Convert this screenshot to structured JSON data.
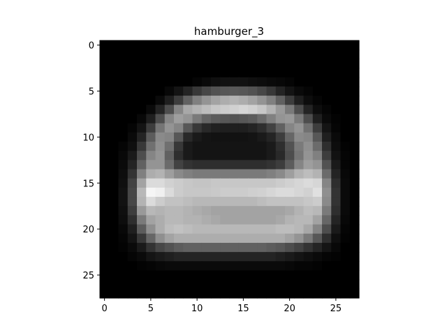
{
  "chart_data": {
    "type": "heatmap",
    "title": "hamburger_3",
    "colormap": "gray",
    "rows": 28,
    "cols": 28,
    "xlim": [
      -0.5,
      27.5
    ],
    "ylim": [
      27.5,
      -0.5
    ],
    "xticks": [
      0,
      5,
      10,
      15,
      20,
      25
    ],
    "yticks": [
      0,
      5,
      10,
      15,
      20,
      25
    ],
    "grid": false,
    "values": [
      [
        0,
        0,
        0,
        0,
        0,
        0,
        0,
        0,
        0,
        0,
        0,
        0,
        0,
        0,
        0,
        0,
        0,
        0,
        0,
        0,
        0,
        0,
        0,
        0,
        0,
        0,
        0,
        0
      ],
      [
        0,
        0,
        0,
        0,
        0,
        0,
        0,
        0,
        0,
        0,
        0,
        0,
        0,
        0,
        0,
        0,
        0,
        0,
        0,
        0,
        0,
        0,
        0,
        0,
        0,
        0,
        0,
        0
      ],
      [
        0,
        0,
        0,
        0,
        0,
        0,
        0,
        0,
        0,
        0,
        0,
        0,
        0,
        0,
        0,
        0,
        0,
        0,
        0,
        0,
        0,
        0,
        0,
        0,
        0,
        0,
        0,
        0
      ],
      [
        0,
        0,
        0,
        0,
        0,
        0,
        0,
        0,
        0,
        0,
        0,
        0,
        0,
        0,
        0,
        0,
        0,
        0,
        0,
        0,
        0,
        0,
        0,
        0,
        0,
        0,
        0,
        0
      ],
      [
        0,
        0,
        0,
        0,
        0,
        0,
        0,
        0,
        0,
        0,
        0.02,
        0.04,
        0.06,
        0.07,
        0.07,
        0.07,
        0.06,
        0.05,
        0.04,
        0.03,
        0.02,
        0,
        0,
        0,
        0,
        0,
        0,
        0
      ],
      [
        0,
        0,
        0,
        0,
        0,
        0,
        0,
        0.03,
        0.08,
        0.14,
        0.22,
        0.28,
        0.32,
        0.34,
        0.35,
        0.34,
        0.32,
        0.28,
        0.22,
        0.14,
        0.08,
        0.04,
        0.02,
        0,
        0,
        0,
        0,
        0
      ],
      [
        0,
        0,
        0,
        0,
        0,
        0,
        0.04,
        0.12,
        0.24,
        0.38,
        0.5,
        0.58,
        0.64,
        0.68,
        0.7,
        0.68,
        0.64,
        0.58,
        0.5,
        0.38,
        0.24,
        0.12,
        0.05,
        0.02,
        0,
        0,
        0,
        0
      ],
      [
        0,
        0,
        0,
        0,
        0,
        0.04,
        0.14,
        0.3,
        0.52,
        0.66,
        0.7,
        0.74,
        0.78,
        0.8,
        0.82,
        0.84,
        0.82,
        0.78,
        0.7,
        0.6,
        0.48,
        0.3,
        0.14,
        0.05,
        0.02,
        0,
        0,
        0
      ],
      [
        0,
        0,
        0,
        0,
        0.03,
        0.12,
        0.3,
        0.52,
        0.62,
        0.58,
        0.48,
        0.4,
        0.36,
        0.34,
        0.33,
        0.34,
        0.36,
        0.42,
        0.5,
        0.58,
        0.6,
        0.48,
        0.3,
        0.12,
        0.04,
        0.01,
        0,
        0
      ],
      [
        0,
        0,
        0,
        0.02,
        0.08,
        0.24,
        0.46,
        0.58,
        0.52,
        0.34,
        0.22,
        0.16,
        0.13,
        0.12,
        0.12,
        0.12,
        0.14,
        0.18,
        0.26,
        0.38,
        0.52,
        0.58,
        0.44,
        0.24,
        0.08,
        0.02,
        0,
        0
      ],
      [
        0,
        0,
        0,
        0.04,
        0.14,
        0.36,
        0.54,
        0.52,
        0.34,
        0.16,
        0.1,
        0.08,
        0.07,
        0.07,
        0.07,
        0.07,
        0.08,
        0.1,
        0.14,
        0.24,
        0.4,
        0.54,
        0.52,
        0.34,
        0.12,
        0.04,
        0,
        0
      ],
      [
        0,
        0,
        0.02,
        0.06,
        0.22,
        0.44,
        0.56,
        0.44,
        0.22,
        0.1,
        0.08,
        0.08,
        0.08,
        0.08,
        0.08,
        0.08,
        0.08,
        0.08,
        0.1,
        0.18,
        0.32,
        0.48,
        0.56,
        0.42,
        0.18,
        0.05,
        0.01,
        0
      ],
      [
        0,
        0,
        0.03,
        0.1,
        0.3,
        0.52,
        0.58,
        0.38,
        0.18,
        0.1,
        0.08,
        0.08,
        0.08,
        0.08,
        0.08,
        0.08,
        0.08,
        0.08,
        0.1,
        0.16,
        0.3,
        0.46,
        0.58,
        0.5,
        0.24,
        0.07,
        0.02,
        0
      ],
      [
        0,
        0,
        0.04,
        0.14,
        0.38,
        0.58,
        0.58,
        0.42,
        0.26,
        0.2,
        0.18,
        0.18,
        0.18,
        0.18,
        0.18,
        0.18,
        0.18,
        0.18,
        0.2,
        0.24,
        0.36,
        0.52,
        0.62,
        0.58,
        0.32,
        0.1,
        0.02,
        0
      ],
      [
        0,
        0,
        0.05,
        0.2,
        0.5,
        0.68,
        0.7,
        0.62,
        0.54,
        0.5,
        0.48,
        0.48,
        0.48,
        0.48,
        0.48,
        0.48,
        0.48,
        0.48,
        0.5,
        0.54,
        0.62,
        0.7,
        0.74,
        0.7,
        0.42,
        0.14,
        0.03,
        0
      ],
      [
        0,
        0,
        0.06,
        0.26,
        0.64,
        0.86,
        0.86,
        0.82,
        0.8,
        0.78,
        0.77,
        0.77,
        0.78,
        0.78,
        0.78,
        0.78,
        0.78,
        0.78,
        0.78,
        0.8,
        0.82,
        0.84,
        0.86,
        0.84,
        0.52,
        0.18,
        0.04,
        0
      ],
      [
        0,
        0,
        0.07,
        0.28,
        0.72,
        0.96,
        0.94,
        0.86,
        0.8,
        0.78,
        0.78,
        0.78,
        0.79,
        0.8,
        0.8,
        0.8,
        0.81,
        0.82,
        0.84,
        0.86,
        0.86,
        0.84,
        0.82,
        0.88,
        0.56,
        0.2,
        0.04,
        0
      ],
      [
        0,
        0,
        0.07,
        0.28,
        0.7,
        0.86,
        0.8,
        0.76,
        0.76,
        0.74,
        0.72,
        0.72,
        0.72,
        0.72,
        0.72,
        0.72,
        0.72,
        0.74,
        0.76,
        0.76,
        0.76,
        0.76,
        0.78,
        0.8,
        0.54,
        0.2,
        0.04,
        0
      ],
      [
        0,
        0,
        0.06,
        0.24,
        0.6,
        0.72,
        0.7,
        0.72,
        0.72,
        0.7,
        0.68,
        0.66,
        0.64,
        0.64,
        0.64,
        0.64,
        0.64,
        0.64,
        0.64,
        0.64,
        0.66,
        0.7,
        0.74,
        0.72,
        0.48,
        0.18,
        0.04,
        0
      ],
      [
        0,
        0,
        0.05,
        0.18,
        0.48,
        0.64,
        0.68,
        0.72,
        0.72,
        0.7,
        0.7,
        0.68,
        0.66,
        0.64,
        0.64,
        0.64,
        0.64,
        0.64,
        0.64,
        0.66,
        0.7,
        0.72,
        0.72,
        0.64,
        0.4,
        0.14,
        0.03,
        0
      ],
      [
        0,
        0,
        0.03,
        0.12,
        0.36,
        0.56,
        0.68,
        0.74,
        0.76,
        0.74,
        0.72,
        0.72,
        0.72,
        0.72,
        0.72,
        0.72,
        0.72,
        0.72,
        0.72,
        0.74,
        0.74,
        0.72,
        0.66,
        0.52,
        0.3,
        0.1,
        0.02,
        0
      ],
      [
        0,
        0,
        0.02,
        0.08,
        0.22,
        0.4,
        0.56,
        0.64,
        0.68,
        0.68,
        0.68,
        0.68,
        0.68,
        0.68,
        0.68,
        0.68,
        0.68,
        0.68,
        0.68,
        0.68,
        0.64,
        0.58,
        0.48,
        0.34,
        0.18,
        0.06,
        0.01,
        0
      ],
      [
        0,
        0,
        0.01,
        0.04,
        0.1,
        0.2,
        0.28,
        0.32,
        0.36,
        0.38,
        0.38,
        0.38,
        0.38,
        0.38,
        0.38,
        0.38,
        0.38,
        0.38,
        0.36,
        0.34,
        0.3,
        0.26,
        0.2,
        0.14,
        0.08,
        0.03,
        0,
        0
      ],
      [
        0,
        0,
        0,
        0.02,
        0.04,
        0.08,
        0.1,
        0.12,
        0.14,
        0.14,
        0.14,
        0.14,
        0.14,
        0.14,
        0.14,
        0.14,
        0.14,
        0.14,
        0.14,
        0.12,
        0.1,
        0.08,
        0.06,
        0.04,
        0.02,
        0.01,
        0,
        0
      ],
      [
        0,
        0,
        0,
        0,
        0.01,
        0.02,
        0.03,
        0.04,
        0.04,
        0.04,
        0.04,
        0.04,
        0.04,
        0.04,
        0.04,
        0.04,
        0.04,
        0.04,
        0.04,
        0.04,
        0.03,
        0.02,
        0.02,
        0.01,
        0,
        0,
        0,
        0
      ],
      [
        0,
        0,
        0,
        0,
        0,
        0,
        0,
        0,
        0,
        0,
        0,
        0,
        0,
        0,
        0,
        0,
        0,
        0,
        0,
        0,
        0,
        0,
        0,
        0,
        0,
        0,
        0,
        0
      ],
      [
        0,
        0,
        0,
        0,
        0,
        0,
        0,
        0,
        0,
        0,
        0,
        0,
        0,
        0,
        0,
        0,
        0,
        0,
        0,
        0,
        0,
        0,
        0,
        0,
        0,
        0,
        0,
        0
      ],
      [
        0,
        0,
        0,
        0,
        0,
        0,
        0,
        0,
        0,
        0,
        0,
        0,
        0,
        0,
        0,
        0,
        0,
        0,
        0,
        0,
        0,
        0,
        0,
        0,
        0,
        0,
        0,
        0
      ]
    ]
  }
}
